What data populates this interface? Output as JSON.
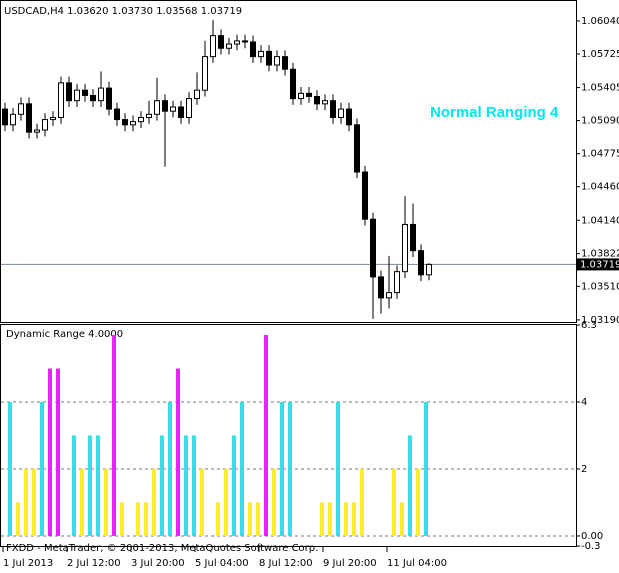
{
  "chart_data": [
    {
      "type": "candlestick",
      "title": "USDCAD,H4  1.03620 1.03730 1.03568 1.03719",
      "annotation": "Normal Ranging 4",
      "annotation_color": "#00e5ee",
      "up_color": "#ffffff",
      "down_color": "#000000",
      "open": [
        1.052,
        1.0505,
        1.0515,
        1.0525,
        1.0498,
        1.05,
        1.051,
        1.0512,
        1.0545,
        1.0528,
        1.0538,
        1.0533,
        1.0528,
        1.054,
        1.052,
        1.051,
        1.0505,
        1.0508,
        1.0512,
        1.0515,
        1.0528,
        1.0518,
        1.0522,
        1.0512,
        1.053,
        1.0538,
        1.057,
        1.059,
        1.0578,
        1.0582,
        1.0585,
        1.0584,
        1.057,
        1.0575,
        1.0562,
        1.057,
        1.0558,
        1.053,
        1.0535,
        1.0532,
        1.0525,
        1.0528,
        1.0512,
        1.052,
        1.0505,
        1.046,
        1.0415,
        1.036,
        1.034,
        1.0345,
        1.0365,
        1.041,
        1.0385,
        1.0362
      ],
      "high": [
        1.0526,
        1.0521,
        1.0531,
        1.0531,
        1.0506,
        1.0516,
        1.0518,
        1.0551,
        1.0551,
        1.0544,
        1.0544,
        1.0539,
        1.0556,
        1.0546,
        1.0526,
        1.0516,
        1.0514,
        1.0518,
        1.0528,
        1.055,
        1.0534,
        1.0528,
        1.0528,
        1.0536,
        1.0555,
        1.0585,
        1.0605,
        1.0596,
        1.0588,
        1.0591,
        1.0591,
        1.059,
        1.0581,
        1.0581,
        1.0576,
        1.0576,
        1.0564,
        1.0541,
        1.0541,
        1.0538,
        1.0534,
        1.0534,
        1.0526,
        1.0526,
        1.0511,
        1.0466,
        1.0421,
        1.0366,
        1.038,
        1.0371,
        1.0437,
        1.043,
        1.0391,
        1.0373
      ],
      "low": [
        1.0499,
        1.0499,
        1.0509,
        1.0492,
        1.0492,
        1.0494,
        1.0504,
        1.0506,
        1.0522,
        1.0522,
        1.0527,
        1.0522,
        1.0522,
        1.0514,
        1.0504,
        1.0499,
        1.0499,
        1.0502,
        1.0506,
        1.0509,
        1.0465,
        1.0512,
        1.0506,
        1.0506,
        1.0524,
        1.0532,
        1.0564,
        1.0572,
        1.0572,
        1.0576,
        1.0578,
        1.0564,
        1.0564,
        1.0556,
        1.0556,
        1.0552,
        1.0524,
        1.0524,
        1.0526,
        1.0519,
        1.0519,
        1.0506,
        1.0506,
        1.0499,
        1.0454,
        1.0409,
        1.032,
        1.0325,
        1.033,
        1.0339,
        1.0359,
        1.0379,
        1.0356,
        1.03568
      ],
      "close": [
        1.0505,
        1.0515,
        1.0525,
        1.0498,
        1.05,
        1.051,
        1.0512,
        1.0545,
        1.0528,
        1.0538,
        1.0533,
        1.0528,
        1.054,
        1.052,
        1.051,
        1.0505,
        1.0508,
        1.0512,
        1.0515,
        1.0528,
        1.0518,
        1.0522,
        1.0512,
        1.053,
        1.0538,
        1.057,
        1.059,
        1.0578,
        1.0582,
        1.0585,
        1.0584,
        1.057,
        1.0575,
        1.0562,
        1.057,
        1.0558,
        1.053,
        1.0535,
        1.0532,
        1.0525,
        1.0528,
        1.0512,
        1.052,
        1.0505,
        1.046,
        1.0415,
        1.036,
        1.034,
        1.0345,
        1.0365,
        1.041,
        1.0385,
        1.0362,
        1.03719
      ],
      "current_price": 1.03719,
      "ylim": [
        1.0317,
        1.0624
      ],
      "yticks": [
        {
          "value": 1.0604,
          "label": "1.06040"
        },
        1.05725,
        1.05405,
        {
          "value": 1.0509,
          "label": "1.05090"
        },
        1.04775,
        {
          "value": 1.0446,
          "label": "1.04460"
        },
        {
          "value": 1.0414,
          "label": "1.04140"
        },
        1.03822,
        {
          "value": 1.0351,
          "label": "1.03510"
        },
        {
          "value": 1.0319,
          "label": "1.03190"
        }
      ],
      "xticks": [
        {
          "value": 0,
          "label": "1 Jul 2013"
        },
        {
          "value": 8,
          "label": "2 Jul 12:00"
        },
        {
          "value": 16,
          "label": "3 Jul 20:00"
        },
        {
          "value": 24,
          "label": "5 Jul 04:00"
        },
        {
          "value": 32,
          "label": "8 Jul 12:00"
        },
        {
          "value": 40,
          "label": "9 Jul 20:00"
        },
        {
          "value": 48,
          "label": "11 Jul 04:00"
        }
      ],
      "grid": false
    },
    {
      "type": "bar",
      "title": "Dynamic Range 4.0000",
      "footer": "FXDD - MetaTrader, © 2001-2013, MetaQuotes Software Corp.",
      "series": [
        {
          "color": "#33e0ea",
          "values": [
            4,
            null,
            null,
            null,
            4,
            null,
            null,
            null,
            3,
            null,
            3,
            3,
            null,
            null,
            null,
            null,
            null,
            null,
            null,
            3,
            4,
            null,
            3,
            3,
            null,
            null,
            null,
            null,
            3,
            4,
            null,
            null,
            null,
            null,
            4,
            4,
            null,
            null,
            null,
            null,
            null,
            4,
            null,
            null,
            null,
            null,
            null,
            null,
            null,
            null,
            3,
            null,
            4,
            null
          ]
        },
        {
          "color": "#ffee22",
          "values": [
            null,
            1,
            2,
            2,
            null,
            null,
            null,
            null,
            null,
            2,
            null,
            null,
            2,
            null,
            1,
            null,
            1,
            1,
            2,
            null,
            null,
            null,
            null,
            null,
            2,
            null,
            1,
            2,
            null,
            null,
            1,
            1,
            null,
            2,
            null,
            null,
            null,
            null,
            null,
            1,
            1,
            null,
            1,
            1,
            2,
            null,
            null,
            null,
            2,
            1,
            null,
            2,
            null,
            null
          ]
        },
        {
          "color": "#ee22ee",
          "values": [
            null,
            null,
            null,
            null,
            null,
            5,
            5,
            null,
            null,
            null,
            null,
            null,
            null,
            6,
            null,
            null,
            null,
            null,
            null,
            null,
            null,
            5,
            null,
            null,
            null,
            null,
            null,
            null,
            null,
            null,
            null,
            null,
            6,
            null,
            null,
            null,
            null,
            null,
            null,
            null,
            null,
            null,
            null,
            null,
            null,
            null,
            null,
            null,
            null,
            null,
            null,
            null,
            null,
            null
          ]
        }
      ],
      "ylim": [
        -0.3,
        6.3
      ],
      "yticks": [
        6.3,
        4,
        2,
        {
          "value": 0,
          "label": "0.00"
        },
        -0.3
      ],
      "grid": true
    }
  ]
}
